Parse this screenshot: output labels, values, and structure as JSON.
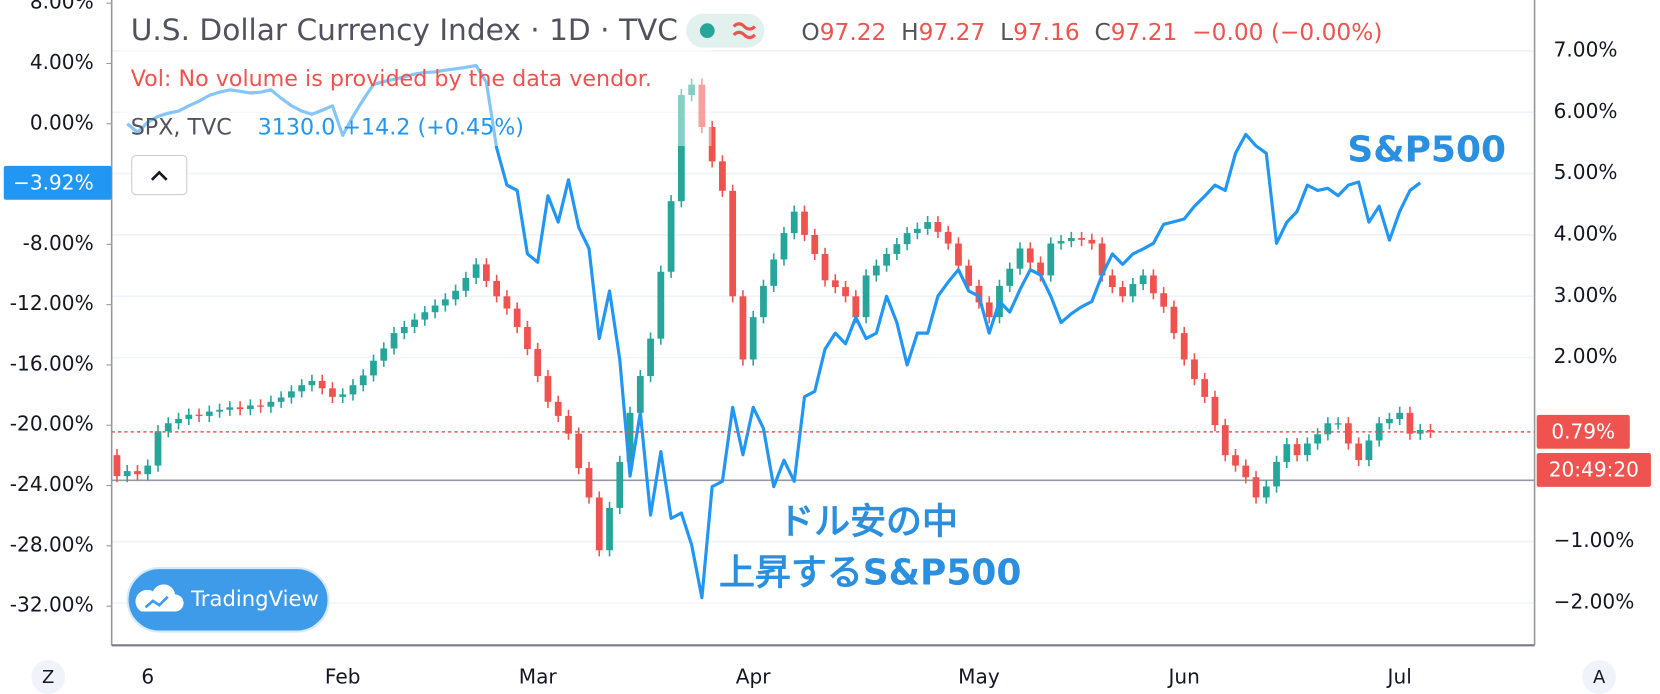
{
  "chart_data": {
    "type": "candlestick",
    "title": "U.S. Dollar Currency Index · 1D · TVC",
    "ohlc_legend": [
      {
        "key": "O",
        "value": "97.22"
      },
      {
        "key": "H",
        "value": "97.27"
      },
      {
        "key": "L",
        "value": "97.16"
      },
      {
        "key": "C",
        "value": "97.21"
      }
    ],
    "change": "−0.00 (−0.00%)",
    "volume_note": "Vol: No volume is provided by the data vendor.",
    "categories": [
      null,
      null,
      null,
      "6",
      null,
      null,
      null,
      null,
      null,
      null,
      null,
      null,
      null,
      null,
      null,
      null,
      null,
      null,
      null,
      null,
      null,
      null,
      "Feb",
      null,
      null,
      null,
      null,
      null,
      null,
      null,
      null,
      null,
      null,
      null,
      null,
      null,
      null,
      null,
      null,
      null,
      null,
      "Mar",
      null,
      null,
      null,
      null,
      null,
      null,
      null,
      null,
      null,
      null,
      null,
      null,
      null,
      null,
      null,
      null,
      null,
      null,
      null,
      null,
      "Apr",
      null,
      null,
      null,
      null,
      null,
      null,
      null,
      null,
      null,
      null,
      null,
      null,
      null,
      null,
      null,
      null,
      null,
      null,
      null,
      null,
      null,
      "May",
      null,
      null,
      null,
      null,
      null,
      null,
      null,
      null,
      null,
      null,
      null,
      null,
      null,
      null,
      null,
      null,
      null,
      null,
      null,
      "Jun",
      null,
      null,
      null,
      null,
      null,
      null,
      null,
      null,
      null,
      null,
      null,
      null,
      null,
      null,
      null,
      null,
      null,
      null,
      null,
      null,
      "Jul",
      null,
      null,
      null
    ],
    "ylim": [
      -34.6,
      8.21
    ],
    "yticks": [
      {
        "value": 8,
        "label": "8.00%"
      },
      {
        "value": 4,
        "label": "4.00%"
      },
      {
        "value": 0,
        "label": "0.00%"
      },
      {
        "value": -8,
        "label": "-8.00%"
      },
      {
        "value": -12,
        "label": "-12.00%"
      },
      {
        "value": -16,
        "label": "-16.00%"
      },
      {
        "value": -20,
        "label": "-20.00%"
      },
      {
        "value": -24,
        "label": "-24.00%"
      },
      {
        "value": -28,
        "label": "-28.00%"
      },
      {
        "value": -32,
        "label": "-32.00%"
      }
    ],
    "y2lim": [
      -2.69,
      7.83
    ],
    "y2ticks": [
      {
        "value": 7,
        "label": "7.00%"
      },
      {
        "value": 6,
        "label": "6.00%"
      },
      {
        "value": 5,
        "label": "5.00%"
      },
      {
        "value": 4,
        "label": "4.00%"
      },
      {
        "value": 3,
        "label": "3.00%"
      },
      {
        "value": 2,
        "label": "2.00%"
      },
      {
        "value": -1,
        "label": "−1.00%"
      },
      {
        "value": -2,
        "label": "−2.00%"
      }
    ],
    "grid": true,
    "y2_baseline": 0,
    "series": [
      {
        "name": "U.S. Dollar Currency Index",
        "type": "candlestick",
        "axis": "y2",
        "up_color": "#26a69a",
        "down_color": "#ef5350",
        "open": [
          0.41,
          0.07,
          0.15,
          0.1,
          0.24,
          0.8,
          0.93,
          1.0,
          1.07,
          1.05,
          1.12,
          1.15,
          1.19,
          1.16,
          1.22,
          1.2,
          1.28,
          1.35,
          1.45,
          1.55,
          1.62,
          1.5,
          1.36,
          1.4,
          1.55,
          1.71,
          1.95,
          2.15,
          2.4,
          2.5,
          2.62,
          2.74,
          2.85,
          2.95,
          3.09,
          3.3,
          3.52,
          3.25,
          3.0,
          2.8,
          2.5,
          2.14,
          1.7,
          1.28,
          1.05,
          0.76,
          0.2,
          -0.28,
          -1.14,
          -0.45,
          0.3,
          1.1,
          1.7,
          2.31,
          3.4,
          4.55,
          6.28,
          6.45,
          5.76,
          5.2,
          4.72,
          3.0,
          1.97,
          2.66,
          3.17,
          3.6,
          4.03,
          4.38,
          4.0,
          3.69,
          3.26,
          3.15,
          3.0,
          2.66,
          3.34,
          3.5,
          3.69,
          3.85,
          4.03,
          4.1,
          4.21,
          4.05,
          3.86,
          3.5,
          3.17,
          2.9,
          2.66,
          3.17,
          3.45,
          3.78,
          3.55,
          3.34,
          3.86,
          3.9,
          3.95,
          3.92,
          3.86,
          3.34,
          3.15,
          3.0,
          3.2,
          3.34,
          3.05,
          2.83,
          2.4,
          1.97,
          1.65,
          1.36,
          0.9,
          0.41,
          0.24,
          0.05,
          -0.28,
          -0.1,
          0.3,
          0.59,
          0.41,
          0.6,
          0.75,
          0.93,
          0.93,
          0.6,
          0.33,
          0.65,
          0.93,
          1.0,
          1.1,
          0.76,
          0.82
        ],
        "high": [
          0.51,
          0.25,
          0.25,
          0.34,
          0.9,
          1.03,
          1.1,
          1.17,
          1.17,
          1.22,
          1.25,
          1.29,
          1.29,
          1.32,
          1.32,
          1.38,
          1.45,
          1.55,
          1.65,
          1.72,
          1.72,
          1.6,
          1.5,
          1.65,
          1.81,
          2.05,
          2.25,
          2.5,
          2.6,
          2.72,
          2.84,
          2.95,
          3.05,
          3.19,
          3.4,
          3.62,
          3.62,
          3.35,
          3.1,
          2.9,
          2.6,
          2.24,
          1.8,
          1.38,
          1.15,
          0.86,
          0.3,
          -0.18,
          -0.35,
          0.4,
          1.2,
          1.8,
          2.41,
          3.5,
          4.65,
          6.38,
          6.55,
          6.55,
          5.86,
          5.3,
          4.82,
          3.1,
          2.76,
          3.27,
          3.7,
          4.13,
          4.48,
          4.48,
          4.1,
          3.79,
          3.36,
          3.25,
          3.1,
          3.44,
          3.6,
          3.79,
          3.95,
          4.13,
          4.2,
          4.31,
          4.31,
          4.15,
          3.96,
          3.6,
          3.27,
          3.0,
          3.27,
          3.55,
          3.88,
          3.88,
          3.65,
          3.96,
          4.0,
          4.05,
          4.05,
          4.02,
          3.96,
          3.44,
          3.25,
          3.3,
          3.44,
          3.44,
          3.15,
          2.93,
          2.5,
          2.07,
          1.75,
          1.46,
          1.0,
          0.51,
          0.34,
          0.15,
          0.0,
          0.4,
          0.69,
          0.69,
          0.7,
          0.85,
          1.03,
          1.03,
          1.03,
          0.7,
          0.75,
          1.03,
          1.1,
          1.2,
          1.2,
          0.92,
          0.92
        ],
        "low": [
          -0.03,
          -0.03,
          0.0,
          0.0,
          0.14,
          0.7,
          0.83,
          0.9,
          0.95,
          0.95,
          1.02,
          1.05,
          1.06,
          1.06,
          1.1,
          1.1,
          1.18,
          1.25,
          1.35,
          1.45,
          1.4,
          1.26,
          1.26,
          1.3,
          1.45,
          1.61,
          1.85,
          2.05,
          2.3,
          2.4,
          2.52,
          2.64,
          2.75,
          2.85,
          2.99,
          3.2,
          3.15,
          2.9,
          2.7,
          2.4,
          2.04,
          1.6,
          1.18,
          0.95,
          0.66,
          0.1,
          -0.38,
          -1.24,
          -1.24,
          -0.55,
          0.2,
          1.0,
          1.6,
          2.21,
          3.3,
          4.45,
          6.18,
          5.66,
          5.1,
          4.62,
          2.9,
          1.87,
          1.87,
          2.56,
          3.07,
          3.5,
          3.93,
          3.9,
          3.59,
          3.16,
          3.05,
          2.9,
          2.56,
          2.56,
          3.24,
          3.4,
          3.59,
          3.75,
          3.93,
          4.0,
          3.95,
          3.76,
          3.4,
          3.07,
          2.8,
          2.56,
          2.56,
          3.07,
          3.35,
          3.45,
          3.24,
          3.24,
          3.76,
          3.8,
          3.82,
          3.76,
          3.24,
          3.05,
          2.9,
          2.9,
          3.1,
          2.95,
          2.73,
          2.3,
          1.87,
          1.55,
          1.26,
          0.8,
          0.31,
          0.14,
          -0.05,
          -0.38,
          -0.38,
          -0.2,
          0.2,
          0.31,
          0.31,
          0.5,
          0.65,
          0.83,
          0.5,
          0.23,
          0.23,
          0.55,
          0.83,
          0.9,
          0.66,
          0.66,
          0.69
        ],
        "close": [
          0.07,
          0.15,
          0.1,
          0.24,
          0.8,
          0.93,
          1.0,
          1.07,
          1.05,
          1.12,
          1.15,
          1.19,
          1.16,
          1.22,
          1.2,
          1.28,
          1.35,
          1.45,
          1.55,
          1.62,
          1.5,
          1.36,
          1.4,
          1.55,
          1.71,
          1.95,
          2.15,
          2.4,
          2.5,
          2.62,
          2.74,
          2.85,
          2.95,
          3.09,
          3.3,
          3.52,
          3.25,
          3.0,
          2.8,
          2.5,
          2.14,
          1.7,
          1.28,
          1.05,
          0.76,
          0.2,
          -0.28,
          -1.14,
          -0.45,
          0.3,
          1.1,
          1.7,
          2.31,
          3.4,
          4.55,
          6.28,
          6.45,
          5.76,
          5.2,
          4.72,
          3.0,
          1.97,
          2.66,
          3.17,
          3.6,
          4.03,
          4.38,
          4.0,
          3.69,
          3.26,
          3.15,
          3.0,
          2.66,
          3.34,
          3.5,
          3.69,
          3.85,
          4.03,
          4.1,
          4.21,
          4.05,
          3.86,
          3.5,
          3.17,
          2.9,
          2.66,
          3.17,
          3.45,
          3.78,
          3.55,
          3.34,
          3.86,
          3.9,
          3.95,
          3.92,
          3.86,
          3.34,
          3.15,
          3.0,
          3.2,
          3.34,
          3.05,
          2.83,
          2.4,
          1.97,
          1.65,
          1.36,
          0.9,
          0.41,
          0.24,
          0.05,
          -0.28,
          -0.1,
          0.3,
          0.59,
          0.41,
          0.6,
          0.75,
          0.93,
          0.93,
          0.6,
          0.33,
          0.65,
          0.93,
          1.0,
          1.1,
          0.76,
          0.82,
          0.79
        ],
        "last_label": {
          "value": 0.79,
          "label": "0.79%"
        },
        "countdown": "20:49:20"
      },
      {
        "name": "SPX, TVC",
        "type": "line",
        "axis": "y",
        "color": "#2196f3",
        "legend_value": "3130.0 +14.2 (+0.45%)",
        "values": [
          null,
          0,
          -0.56,
          0.1,
          0.49,
          0.7,
          0.84,
          1.19,
          1.5,
          1.89,
          2.1,
          2.25,
          2.15,
          2.04,
          2.1,
          2.25,
          1.7,
          1.2,
          0.84,
          0.63,
          0.9,
          1.19,
          -0.77,
          0.49,
          1.6,
          2.6,
          2.8,
          2.95,
          3.1,
          3.3,
          3.4,
          3.44,
          3.55,
          3.65,
          3.75,
          3.86,
          2.74,
          -1.61,
          -4.07,
          -4.42,
          -8.63,
          -9.19,
          -4.77,
          -6.53,
          -3.72,
          -6.88,
          -8.28,
          -14.25,
          -11.09,
          -15.65,
          -23.37,
          -19.16,
          -25.96,
          -21.75,
          -26.18,
          -25.82,
          -27.93,
          -31.44,
          -24.07,
          -23.72,
          -18.81,
          -21.96,
          -18.81,
          -20.21,
          -24.07,
          -22.32,
          -23.72,
          -18.11,
          -17.75,
          -14.95,
          -13.89,
          -14.6,
          -12.84,
          -14.25,
          -13.89,
          -11.44,
          -13.19,
          -16.0,
          -13.89,
          -13.89,
          -11.44,
          -10.5,
          -9.68,
          -11.09,
          -11.44,
          -13.89,
          -11.79,
          -12.49,
          -11.0,
          -9.68,
          -10.04,
          -11.44,
          -13.19,
          -12.6,
          -12.14,
          -11.79,
          -10.04,
          -8.63,
          -9.33,
          -8.63,
          -8.3,
          -7.93,
          -6.67,
          -6.5,
          -6.32,
          -5.47,
          -4.8,
          -4.07,
          -4.42,
          -1.96,
          -0.7,
          -1.47,
          -1.96,
          -7.93,
          -6.53,
          -5.82,
          -4.07,
          -4.42,
          -4.28,
          -4.77,
          -4.07,
          -3.86,
          -6.53,
          -5.47,
          -7.72,
          -5.82,
          -4.42,
          -3.92,
          null
        ],
        "last_label": {
          "value": -3.92,
          "label": "−3.92%"
        }
      }
    ],
    "annotations": [
      "ドル安の中",
      "上昇するS&P500",
      "S&P500"
    ],
    "branding": "TradingView",
    "controls": {
      "left": "Z",
      "right": "A"
    }
  }
}
